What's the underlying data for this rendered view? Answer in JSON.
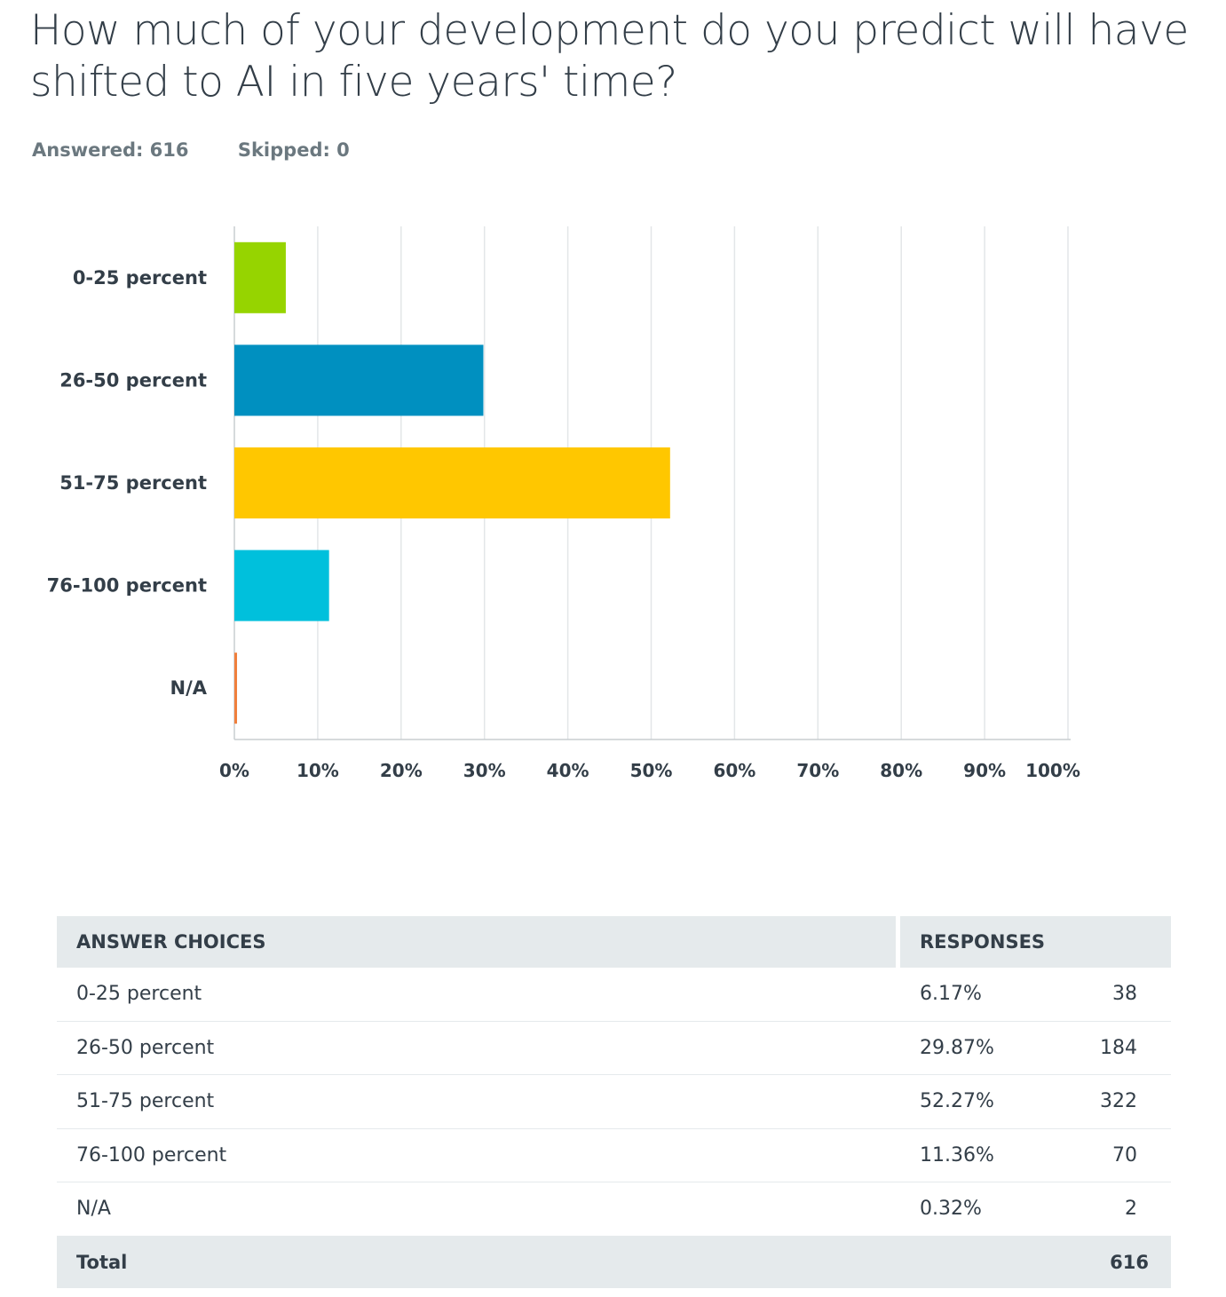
{
  "question": {
    "title": "How much of your development do you predict will have shifted to AI in five years' time?",
    "answered": "Answered: 616",
    "skipped": "Skipped: 0"
  },
  "chart_data": {
    "type": "bar",
    "orientation": "horizontal",
    "categories": [
      "0-25 percent",
      "26-50 percent",
      "51-75 percent",
      "76-100 percent",
      "N/A"
    ],
    "values": [
      6.17,
      29.87,
      52.27,
      11.36,
      0.32
    ],
    "colors": [
      "#96d400",
      "#0090c0",
      "#ffc700",
      "#00c0dc",
      "#f07f3c"
    ],
    "xlim": [
      0,
      100
    ],
    "xticks": [
      "0%",
      "10%",
      "20%",
      "30%",
      "40%",
      "50%",
      "60%",
      "70%",
      "80%",
      "90%",
      "100%"
    ],
    "title": "",
    "xlabel": "",
    "ylabel": "",
    "grid": true
  },
  "table": {
    "headers": {
      "choices": "ANSWER CHOICES",
      "responses": "RESPONSES"
    },
    "rows": [
      {
        "choice": "0-25 percent",
        "percent": "6.17%",
        "count": "38"
      },
      {
        "choice": "26-50 percent",
        "percent": "29.87%",
        "count": "184"
      },
      {
        "choice": "51-75 percent",
        "percent": "52.27%",
        "count": "322"
      },
      {
        "choice": "76-100 percent",
        "percent": "11.36%",
        "count": "70"
      },
      {
        "choice": "N/A",
        "percent": "0.32%",
        "count": "2"
      }
    ],
    "total_label": "Total",
    "total_count": "616"
  }
}
